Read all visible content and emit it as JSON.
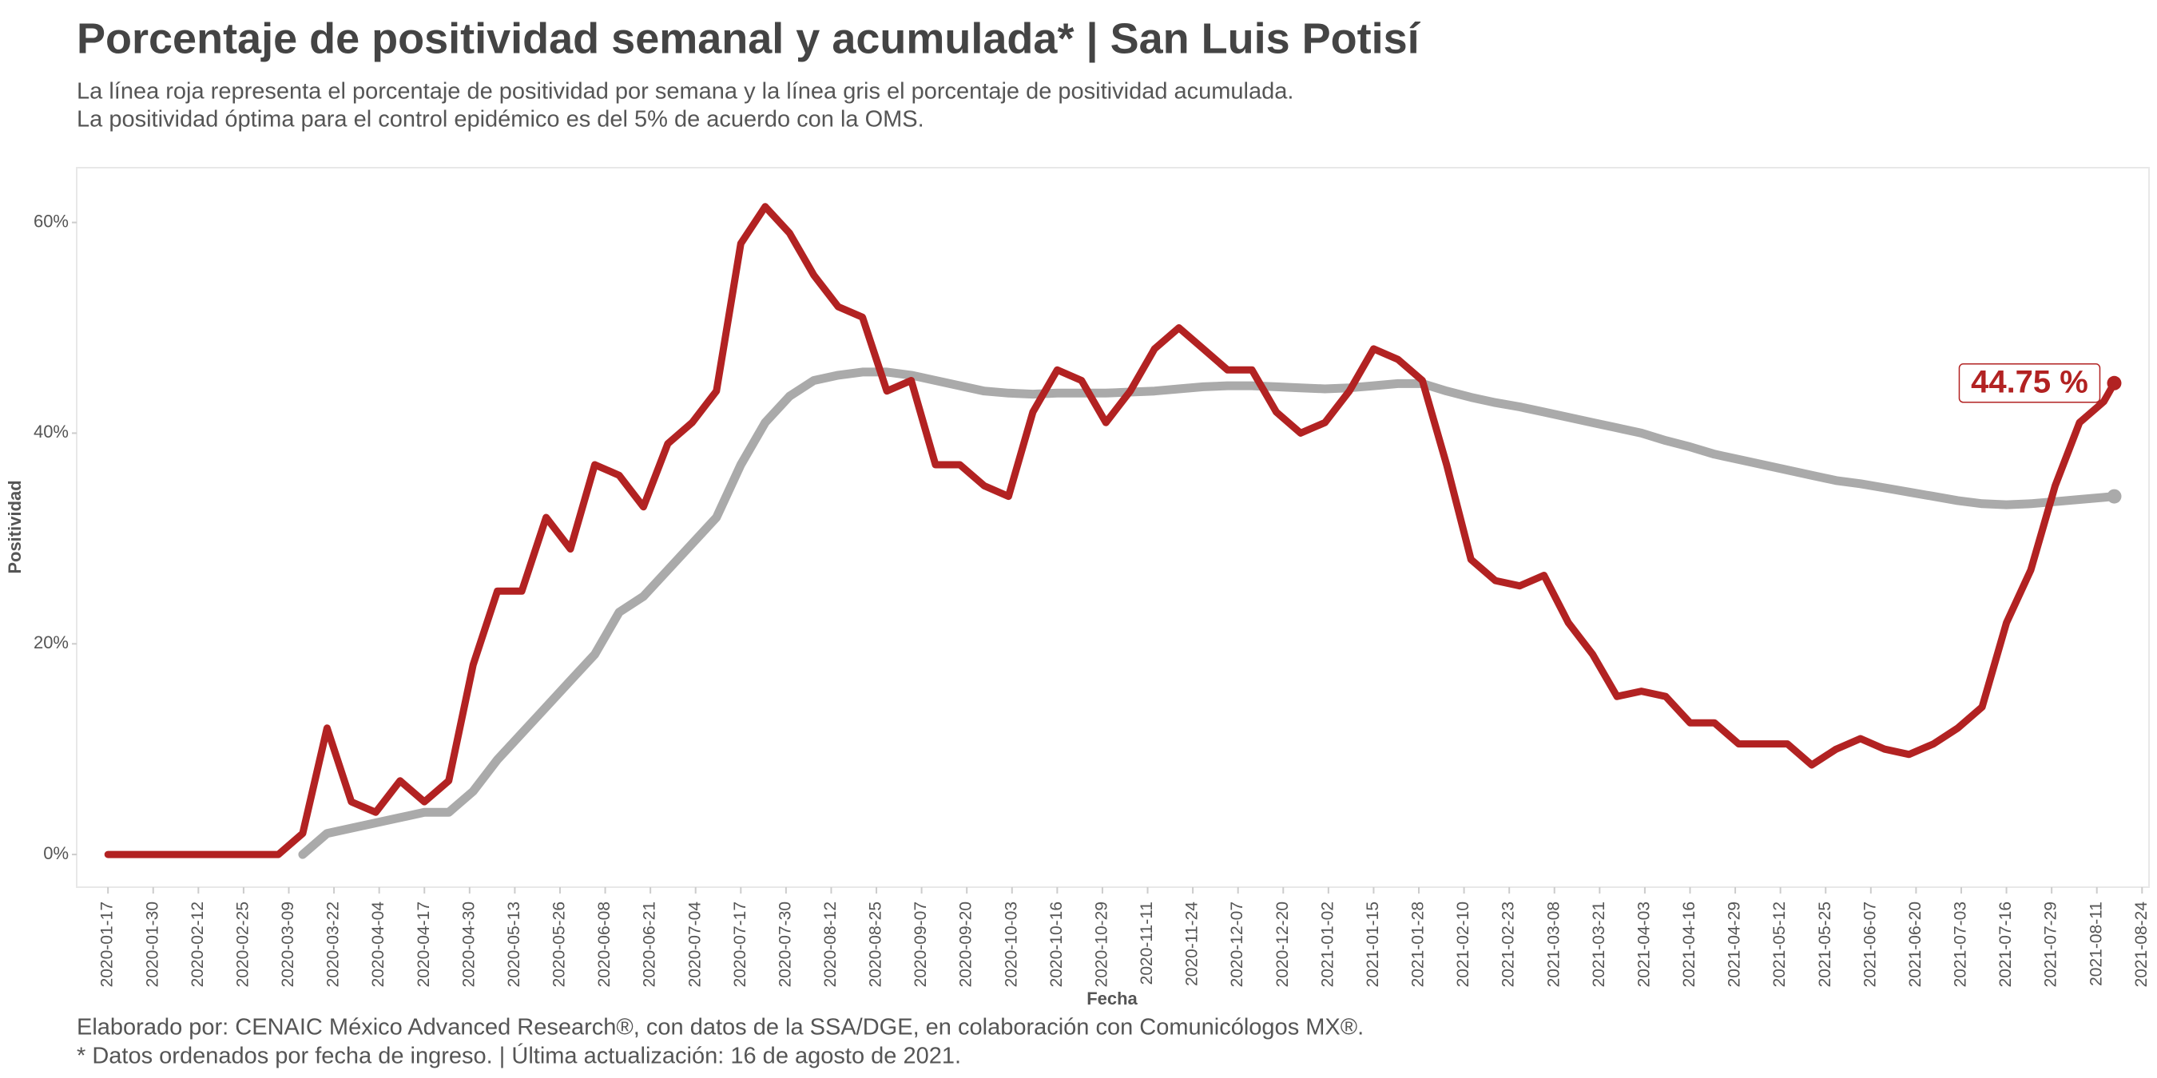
{
  "chart_data": {
    "type": "line",
    "title": "Porcentaje de positividad semanal y acumulada* | San Luis Potisí",
    "subtitle": [
      "La línea roja representa el porcentaje de positividad por semana y la línea gris el porcentaje de positividad acumulada.",
      "La positividad óptima para el control epidémico es del 5% de acuerdo con la OMS."
    ],
    "x_label": "Fecha",
    "y_label": "Positividad",
    "caption": [
      "Elaborado por: CENAIC México Advanced Research®, con datos de la SSA/DGE, en colaboración con Comunicólogos MX®.",
      "* Datos ordenados por fecha de ingreso. | Última actualización: 16 de agosto de 2021."
    ],
    "annotation": "44.75 %",
    "grid": false,
    "xlim": [
      "2020-01-08",
      "2021-08-26"
    ],
    "xticks": [
      "2020-01-17",
      "2020-01-30",
      "2020-02-12",
      "2020-02-25",
      "2020-03-09",
      "2020-03-22",
      "2020-04-04",
      "2020-04-17",
      "2020-04-30",
      "2020-05-13",
      "2020-05-26",
      "2020-06-08",
      "2020-06-21",
      "2020-07-04",
      "2020-07-17",
      "2020-07-30",
      "2020-08-12",
      "2020-08-25",
      "2020-09-07",
      "2020-09-20",
      "2020-10-03",
      "2020-10-16",
      "2020-10-29",
      "2020-11-11",
      "2020-11-24",
      "2020-12-07",
      "2020-12-20",
      "2021-01-02",
      "2021-01-15",
      "2021-01-28",
      "2021-02-10",
      "2021-02-23",
      "2021-03-08",
      "2021-03-21",
      "2021-04-03",
      "2021-04-16",
      "2021-04-29",
      "2021-05-12",
      "2021-05-25",
      "2021-06-07",
      "2021-06-20",
      "2021-07-03",
      "2021-07-16",
      "2021-07-29",
      "2021-08-11",
      "2021-08-24"
    ],
    "ylim": [
      -3.1,
      65.2
    ],
    "yticks": [
      {
        "value": 0,
        "label": "0%"
      },
      {
        "value": 20,
        "label": "20%"
      },
      {
        "value": 40,
        "label": "40%"
      },
      {
        "value": 60,
        "label": "60%"
      }
    ],
    "x": [
      "2020-01-17",
      "2020-01-24",
      "2020-01-31",
      "2020-02-07",
      "2020-02-14",
      "2020-02-21",
      "2020-02-28",
      "2020-03-06",
      "2020-03-13",
      "2020-03-20",
      "2020-03-27",
      "2020-04-03",
      "2020-04-10",
      "2020-04-17",
      "2020-04-24",
      "2020-05-01",
      "2020-05-08",
      "2020-05-15",
      "2020-05-22",
      "2020-05-29",
      "2020-06-05",
      "2020-06-12",
      "2020-06-19",
      "2020-06-26",
      "2020-07-03",
      "2020-07-10",
      "2020-07-17",
      "2020-07-24",
      "2020-07-31",
      "2020-08-07",
      "2020-08-14",
      "2020-08-21",
      "2020-08-28",
      "2020-09-04",
      "2020-09-11",
      "2020-09-18",
      "2020-09-25",
      "2020-10-02",
      "2020-10-09",
      "2020-10-16",
      "2020-10-23",
      "2020-10-30",
      "2020-11-06",
      "2020-11-13",
      "2020-11-20",
      "2020-11-27",
      "2020-12-04",
      "2020-12-11",
      "2020-12-18",
      "2020-12-25",
      "2021-01-01",
      "2021-01-08",
      "2021-01-15",
      "2021-01-22",
      "2021-01-29",
      "2021-02-05",
      "2021-02-12",
      "2021-02-19",
      "2021-02-26",
      "2021-03-05",
      "2021-03-12",
      "2021-03-19",
      "2021-03-26",
      "2021-04-02",
      "2021-04-09",
      "2021-04-16",
      "2021-04-23",
      "2021-04-30",
      "2021-05-07",
      "2021-05-14",
      "2021-05-21",
      "2021-05-28",
      "2021-06-04",
      "2021-06-11",
      "2021-06-18",
      "2021-06-25",
      "2021-07-02",
      "2021-07-09",
      "2021-07-16",
      "2021-07-23",
      "2021-07-30",
      "2021-08-06",
      "2021-08-13",
      "2021-08-16"
    ],
    "series": [
      {
        "color": "#aaaaaa",
        "values": [
          null,
          null,
          null,
          null,
          null,
          null,
          null,
          null,
          0,
          2,
          2.5,
          3,
          3.5,
          4,
          4,
          6,
          9,
          11.5,
          14,
          16.5,
          19,
          23,
          24.5,
          27,
          29.5,
          32,
          37,
          41,
          43.5,
          45,
          45.5,
          45.8,
          45.8,
          45.5,
          45,
          44.5,
          44,
          43.8,
          43.7,
          43.8,
          43.8,
          43.8,
          43.9,
          44,
          44.2,
          44.4,
          44.5,
          44.5,
          44.4,
          44.3,
          44.2,
          44.3,
          44.5,
          44.7,
          44.7,
          44,
          43.4,
          42.9,
          42.5,
          42,
          41.5,
          41,
          40.5,
          40,
          39.3,
          38.7,
          38,
          37.5,
          37,
          36.5,
          36,
          35.5,
          35.2,
          34.8,
          34.4,
          34,
          33.6,
          33.3,
          33.2,
          33.3,
          33.5,
          33.7,
          33.9,
          34
        ]
      },
      {
        "color": "#b22222",
        "values": [
          0,
          0,
          0,
          0,
          0,
          0,
          0,
          0,
          2,
          12,
          5,
          4,
          7,
          5,
          7,
          18,
          25,
          25,
          32,
          29,
          37,
          36,
          33,
          39,
          41,
          44,
          58,
          61.5,
          59,
          55,
          52,
          51,
          44,
          45,
          37,
          37,
          35,
          34,
          42,
          46,
          45,
          41,
          44,
          48,
          50,
          48,
          46,
          46,
          42,
          40,
          41,
          44,
          48,
          47,
          45,
          37,
          28,
          26,
          25.5,
          26.5,
          22,
          19,
          15,
          15.5,
          15,
          12.5,
          12.5,
          10.5,
          10.5,
          10.5,
          8.5,
          10,
          11,
          10,
          9.5,
          10.5,
          12,
          14,
          22,
          27,
          35,
          41,
          43,
          44.75
        ]
      }
    ]
  }
}
